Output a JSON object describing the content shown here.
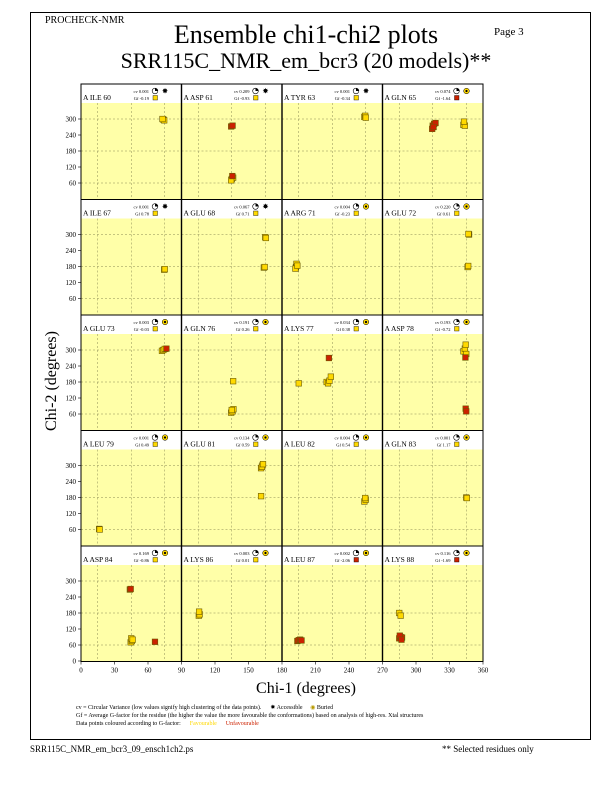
{
  "header": {
    "program": "PROCHECK-NMR",
    "page": "Page  3",
    "title": "Ensemble chi1-chi2 plots",
    "subtitle": "SRR115C_NMR_em_bcr3 (20 models)**"
  },
  "footer": {
    "filename": "SRR115C_NMR_em_bcr3_09_ensch1ch2.ps",
    "selected": "** Selected residues only",
    "note_line1": "cv = Circular Variance (low values signify high clustering of the data points).",
    "accessible": "Accessible",
    "buried": "Buried",
    "note_line2": "Gf = Average G-factor for the residue (the higher the value the more favourable the conformations) based on analysis of high-res. Xtal structures",
    "note_line3": "Data points coloured according to G-factor:",
    "favourable": "Favourable",
    "unfavourable": "Unfavourable"
  },
  "colors": {
    "panel_bg": "#ffffa8",
    "favourable": "#ffd900",
    "unfavourable": "#cc2200",
    "point_outline": "#6b5a00"
  },
  "chart_data": {
    "type": "scatter",
    "xlabel": "Chi-1 (degrees)",
    "ylabel": "Chi-2 (degrees)",
    "xlim": [
      0,
      360
    ],
    "ylim": [
      0,
      360
    ],
    "x_ticks": [
      0,
      30,
      60,
      90,
      120,
      150,
      180,
      210,
      240,
      270,
      300,
      330,
      360
    ],
    "y_ticks": [
      60,
      120,
      180,
      240,
      300
    ],
    "y_ticks_bottom": [
      0,
      60,
      120,
      180,
      240,
      300
    ],
    "grid": true,
    "gridlines": [
      60,
      180,
      300
    ],
    "panels": [
      {
        "label": "A ILE 60",
        "cv": "cv 0.001",
        "gf": "Gf -0.19",
        "gf_color": "fav",
        "access": "accessible",
        "points": [
          {
            "x": 295,
            "y": 298,
            "c": "fav"
          },
          {
            "x": 298,
            "y": 295,
            "c": "fav"
          },
          {
            "x": 292,
            "y": 300,
            "c": "fav"
          }
        ]
      },
      {
        "label": "A ASP 61",
        "cv": "cv 0.209",
        "gf": "Gf -0.93",
        "gf_color": "fav",
        "access": "accessible",
        "points": [
          {
            "x": 180,
            "y": 75,
            "c": "fav"
          },
          {
            "x": 185,
            "y": 80,
            "c": "fav"
          },
          {
            "x": 178,
            "y": 70,
            "c": "fav"
          },
          {
            "x": 182,
            "y": 86,
            "c": "unfav"
          },
          {
            "x": 178,
            "y": 272,
            "c": "unfav"
          },
          {
            "x": 183,
            "y": 275,
            "c": "unfav"
          }
        ]
      },
      {
        "label": "A TYR 63",
        "cv": "cv 0.001",
        "gf": "Gf -0.34",
        "gf_color": "fav",
        "access": "accessible",
        "points": [
          {
            "x": 295,
            "y": 308,
            "c": "fav"
          },
          {
            "x": 298,
            "y": 312,
            "c": "fav"
          },
          {
            "x": 300,
            "y": 305,
            "c": "fav"
          }
        ]
      },
      {
        "label": "A GLN 65",
        "cv": "cv 0.074",
        "gf": "Gf -1.64",
        "gf_color": "unfav",
        "access": "buried",
        "points": [
          {
            "x": 180,
            "y": 275,
            "c": "unfav"
          },
          {
            "x": 185,
            "y": 282,
            "c": "unfav"
          },
          {
            "x": 178,
            "y": 263,
            "c": "unfav"
          },
          {
            "x": 190,
            "y": 285,
            "c": "unfav"
          },
          {
            "x": 183,
            "y": 270,
            "c": "unfav"
          },
          {
            "x": 290,
            "y": 278,
            "c": "fav"
          },
          {
            "x": 295,
            "y": 275,
            "c": "fav"
          },
          {
            "x": 292,
            "y": 290,
            "c": "fav"
          }
        ]
      },
      {
        "label": "A ILE 67",
        "cv": "cv 0.001",
        "gf": "Gf 0.78",
        "gf_color": "fav",
        "access": "accessible",
        "points": [
          {
            "x": 298,
            "y": 168,
            "c": "fav"
          },
          {
            "x": 300,
            "y": 170,
            "c": "fav"
          }
        ]
      },
      {
        "label": "A GLU 68",
        "cv": "cv 0.067",
        "gf": "Gf 0.71",
        "gf_color": "fav",
        "access": "accessible",
        "points": [
          {
            "x": 300,
            "y": 290,
            "c": "fav"
          },
          {
            "x": 302,
            "y": 287,
            "c": "fav"
          },
          {
            "x": 295,
            "y": 176,
            "c": "fav"
          },
          {
            "x": 298,
            "y": 178,
            "c": "fav"
          }
        ]
      },
      {
        "label": "A ARG 71",
        "cv": "cv 0.004",
        "gf": "Gf -0.23",
        "gf_color": "fav",
        "access": "buried",
        "points": [
          {
            "x": 50,
            "y": 178,
            "c": "fav"
          },
          {
            "x": 52,
            "y": 190,
            "c": "fav"
          },
          {
            "x": 48,
            "y": 172,
            "c": "fav"
          },
          {
            "x": 55,
            "y": 183,
            "c": "fav"
          }
        ]
      },
      {
        "label": "A GLU 72",
        "cv": "cv 0.220",
        "gf": "Gf 0.61",
        "gf_color": "fav",
        "access": "buried",
        "points": [
          {
            "x": 310,
            "y": 300,
            "c": "fav"
          },
          {
            "x": 308,
            "y": 302,
            "c": "fav"
          },
          {
            "x": 305,
            "y": 178,
            "c": "fav"
          },
          {
            "x": 307,
            "y": 182,
            "c": "fav"
          }
        ]
      },
      {
        "label": "A GLU 73",
        "cv": "cv 0.003",
        "gf": "Gf -0.03",
        "gf_color": "fav",
        "access": "buried",
        "points": [
          {
            "x": 290,
            "y": 297,
            "c": "fav"
          },
          {
            "x": 295,
            "y": 300,
            "c": "fav"
          },
          {
            "x": 300,
            "y": 304,
            "c": "fav"
          },
          {
            "x": 306,
            "y": 305,
            "c": "unfav"
          }
        ]
      },
      {
        "label": "A GLN 76",
        "cv": "cv 0.191",
        "gf": "Gf 0.26",
        "gf_color": "fav",
        "access": "buried",
        "points": [
          {
            "x": 178,
            "y": 65,
            "c": "fav"
          },
          {
            "x": 183,
            "y": 70,
            "c": "fav"
          },
          {
            "x": 186,
            "y": 78,
            "c": "fav"
          },
          {
            "x": 180,
            "y": 75,
            "c": "fav"
          },
          {
            "x": 185,
            "y": 183,
            "c": "fav"
          }
        ]
      },
      {
        "label": "A LYS 77",
        "cv": "cv 0.034",
        "gf": "Gf 0.38",
        "gf_color": "fav",
        "access": "buried",
        "points": [
          {
            "x": 60,
            "y": 175,
            "c": "fav"
          },
          {
            "x": 160,
            "y": 180,
            "c": "fav"
          },
          {
            "x": 165,
            "y": 175,
            "c": "fav"
          },
          {
            "x": 170,
            "y": 185,
            "c": "fav"
          },
          {
            "x": 175,
            "y": 200,
            "c": "fav"
          },
          {
            "x": 168,
            "y": 270,
            "c": "unfav"
          }
        ]
      },
      {
        "label": "A ASP 78",
        "cv": "cv 0.193",
        "gf": "Gf -0.72",
        "gf_color": "fav",
        "access": "buried",
        "points": [
          {
            "x": 290,
            "y": 295,
            "c": "fav"
          },
          {
            "x": 295,
            "y": 305,
            "c": "fav"
          },
          {
            "x": 298,
            "y": 320,
            "c": "fav"
          },
          {
            "x": 300,
            "y": 285,
            "c": "fav"
          },
          {
            "x": 297,
            "y": 272,
            "c": "unfav"
          },
          {
            "x": 298,
            "y": 80,
            "c": "unfav"
          },
          {
            "x": 300,
            "y": 70,
            "c": "unfav"
          }
        ]
      },
      {
        "label": "A LEU 79",
        "cv": "cv 0.001",
        "gf": "Gf 0.49",
        "gf_color": "fav",
        "access": "buried",
        "points": [
          {
            "x": 65,
            "y": 62,
            "c": "fav"
          },
          {
            "x": 67,
            "y": 60,
            "c": "fav"
          }
        ]
      },
      {
        "label": "A GLU 81",
        "cv": "cv 0.134",
        "gf": "Gf 0.59",
        "gf_color": "fav",
        "access": "buried",
        "points": [
          {
            "x": 285,
            "y": 290,
            "c": "fav"
          },
          {
            "x": 290,
            "y": 300,
            "c": "fav"
          },
          {
            "x": 288,
            "y": 295,
            "c": "fav"
          },
          {
            "x": 292,
            "y": 305,
            "c": "fav"
          },
          {
            "x": 285,
            "y": 185,
            "c": "fav"
          }
        ]
      },
      {
        "label": "A LEU 82",
        "cv": "cv 0.004",
        "gf": "Gf 0.54",
        "gf_color": "fav",
        "access": "buried",
        "points": [
          {
            "x": 295,
            "y": 165,
            "c": "fav"
          },
          {
            "x": 300,
            "y": 172,
            "c": "fav"
          },
          {
            "x": 298,
            "y": 178,
            "c": "fav"
          }
        ]
      },
      {
        "label": "A GLN 83",
        "cv": "cv 0.001",
        "gf": "Gf 1.17",
        "gf_color": "fav",
        "access": "buried",
        "points": [
          {
            "x": 300,
            "y": 180,
            "c": "fav"
          },
          {
            "x": 302,
            "y": 178,
            "c": "fav"
          }
        ]
      },
      {
        "label": "A ASP 84",
        "cv": "cv 0.169",
        "gf": "Gf -0.86",
        "gf_color": "fav",
        "access": "buried",
        "points": [
          {
            "x": 175,
            "y": 268,
            "c": "unfav"
          },
          {
            "x": 178,
            "y": 270,
            "c": "unfav"
          },
          {
            "x": 178,
            "y": 70,
            "c": "fav"
          },
          {
            "x": 182,
            "y": 75,
            "c": "fav"
          },
          {
            "x": 180,
            "y": 85,
            "c": "fav"
          },
          {
            "x": 185,
            "y": 80,
            "c": "fav"
          },
          {
            "x": 265,
            "y": 72,
            "c": "unfav"
          }
        ]
      },
      {
        "label": "A LYS 86",
        "cv": "cv 0.003",
        "gf": "Gf 0.01",
        "gf_color": "fav",
        "access": "buried",
        "points": [
          {
            "x": 62,
            "y": 170,
            "c": "fav"
          },
          {
            "x": 65,
            "y": 175,
            "c": "fav"
          },
          {
            "x": 63,
            "y": 185,
            "c": "fav"
          }
        ]
      },
      {
        "label": "A LEU 87",
        "cv": "cv 0.002",
        "gf": "Gf -2.06",
        "gf_color": "unfav",
        "access": "buried",
        "points": [
          {
            "x": 55,
            "y": 75,
            "c": "unfav"
          },
          {
            "x": 60,
            "y": 78,
            "c": "unfav"
          },
          {
            "x": 65,
            "y": 80,
            "c": "unfav"
          },
          {
            "x": 70,
            "y": 77,
            "c": "unfav"
          }
        ]
      },
      {
        "label": "A LYS 88",
        "cv": "cv 0.116",
        "gf": "Gf -1.69",
        "gf_color": "unfav",
        "access": "buried",
        "points": [
          {
            "x": 60,
            "y": 180,
            "c": "fav"
          },
          {
            "x": 65,
            "y": 170,
            "c": "fav"
          },
          {
            "x": 60,
            "y": 85,
            "c": "unfav"
          },
          {
            "x": 65,
            "y": 90,
            "c": "unfav"
          },
          {
            "x": 70,
            "y": 88,
            "c": "unfav"
          },
          {
            "x": 62,
            "y": 95,
            "c": "unfav"
          },
          {
            "x": 68,
            "y": 80,
            "c": "unfav"
          }
        ]
      }
    ]
  }
}
